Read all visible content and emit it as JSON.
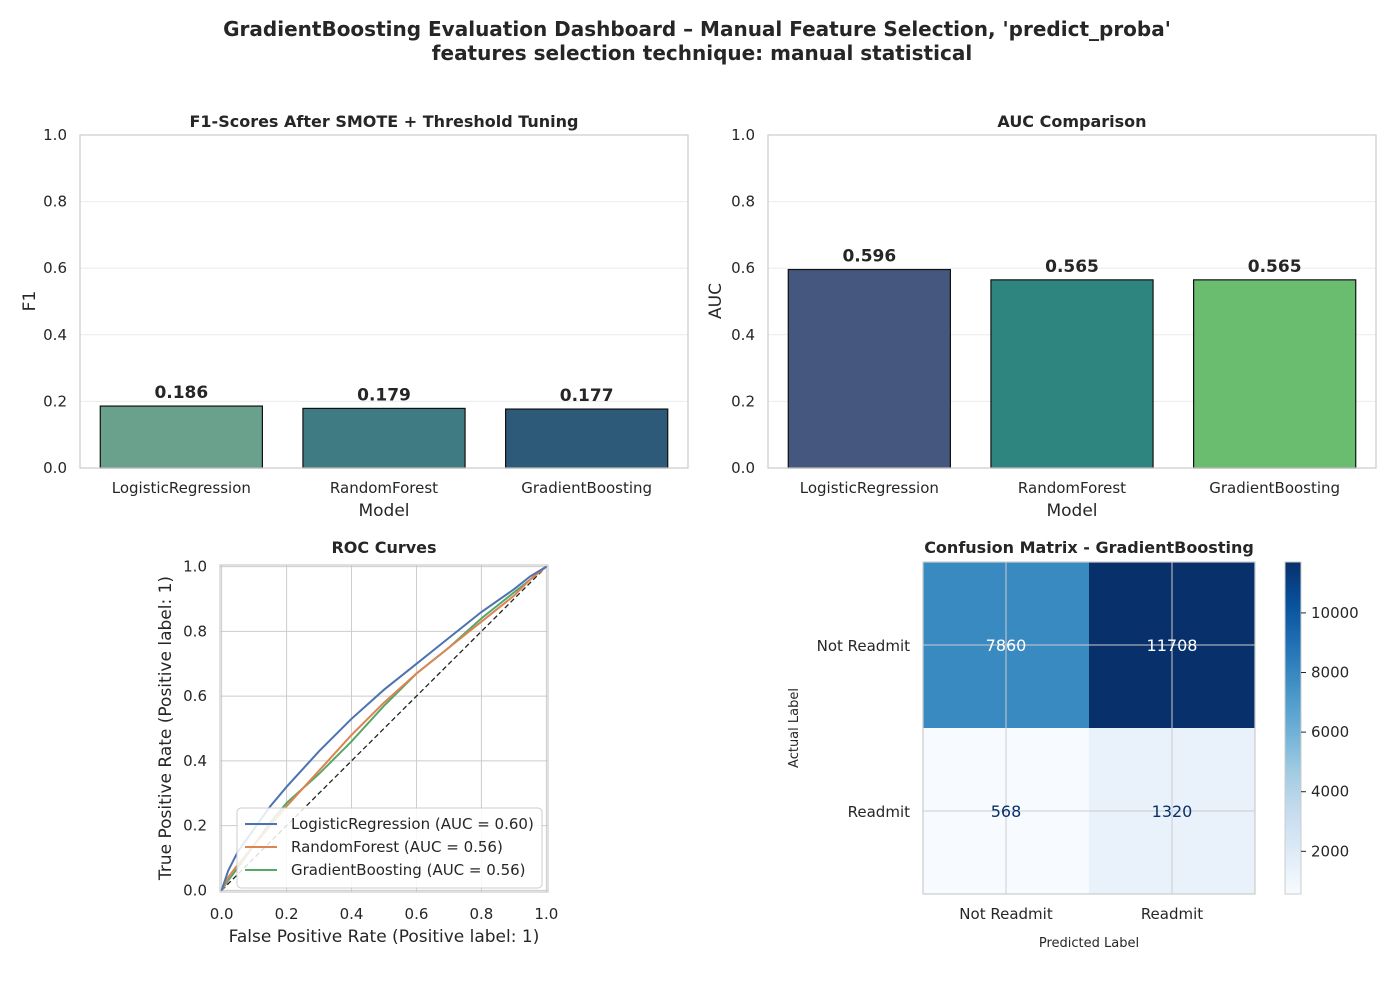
{
  "title_line1": "GradientBoosting Evaluation Dashboard – Manual Feature Selection, 'predict_proba'",
  "title_line2": "features selection technique: manual statistical",
  "chart_data": [
    {
      "type": "bar",
      "title": "F1-Scores After SMOTE + Threshold Tuning",
      "xlabel": "Model",
      "ylabel": "F1",
      "categories": [
        "LogisticRegression",
        "RandomForest",
        "GradientBoosting"
      ],
      "values": [
        0.186,
        0.179,
        0.177
      ],
      "value_labels": [
        "0.186",
        "0.179",
        "0.177"
      ],
      "colors": [
        "#6aa18c",
        "#3f7b82",
        "#2c5a78"
      ],
      "ylim": [
        0,
        1
      ],
      "yticks": [
        "0.0",
        "0.2",
        "0.4",
        "0.6",
        "0.8",
        "1.0"
      ],
      "grid": true
    },
    {
      "type": "bar",
      "title": "AUC Comparison",
      "xlabel": "Model",
      "ylabel": "AUC",
      "categories": [
        "LogisticRegression",
        "RandomForest",
        "GradientBoosting"
      ],
      "values": [
        0.596,
        0.565,
        0.565
      ],
      "value_labels": [
        "0.596",
        "0.565",
        "0.565"
      ],
      "colors": [
        "#45577f",
        "#2e857f",
        "#6abd6e"
      ],
      "ylim": [
        0,
        1
      ],
      "yticks": [
        "0.0",
        "0.2",
        "0.4",
        "0.6",
        "0.8",
        "1.0"
      ],
      "grid": true
    },
    {
      "type": "line",
      "title": "ROC Curves",
      "xlabel": "False Positive Rate (Positive label: 1)",
      "ylabel": "True Positive Rate (Positive label: 1)",
      "xlim": [
        0,
        1
      ],
      "ylim": [
        0,
        1
      ],
      "xticks": [
        "0.0",
        "0.2",
        "0.4",
        "0.6",
        "0.8",
        "1.0"
      ],
      "yticks": [
        "0.0",
        "0.2",
        "0.4",
        "0.6",
        "0.8",
        "1.0"
      ],
      "legend_position": "lower-right",
      "grid": true,
      "series": [
        {
          "name": "LogisticRegression (AUC = 0.60)",
          "color": "#4c72b0",
          "x": [
            0,
            0.02,
            0.05,
            0.1,
            0.15,
            0.2,
            0.3,
            0.4,
            0.5,
            0.6,
            0.7,
            0.8,
            0.9,
            0.95,
            1.0
          ],
          "y": [
            0,
            0.06,
            0.12,
            0.19,
            0.26,
            0.32,
            0.43,
            0.53,
            0.62,
            0.7,
            0.78,
            0.86,
            0.93,
            0.97,
            1.0
          ]
        },
        {
          "name": "RandomForest (AUC = 0.56)",
          "color": "#dd8452",
          "x": [
            0,
            0.02,
            0.05,
            0.1,
            0.15,
            0.2,
            0.3,
            0.4,
            0.5,
            0.6,
            0.7,
            0.8,
            0.9,
            0.95,
            1.0
          ],
          "y": [
            0,
            0.04,
            0.08,
            0.14,
            0.2,
            0.26,
            0.37,
            0.48,
            0.58,
            0.67,
            0.75,
            0.83,
            0.91,
            0.96,
            1.0
          ]
        },
        {
          "name": "GradientBoosting (AUC = 0.56)",
          "color": "#55a868",
          "x": [
            0,
            0.02,
            0.05,
            0.1,
            0.15,
            0.2,
            0.3,
            0.4,
            0.5,
            0.6,
            0.7,
            0.8,
            0.9,
            0.95,
            1.0
          ],
          "y": [
            0,
            0.03,
            0.07,
            0.14,
            0.21,
            0.27,
            0.36,
            0.46,
            0.57,
            0.67,
            0.75,
            0.84,
            0.92,
            0.96,
            1.0
          ]
        },
        {
          "name": "",
          "color": "#222222",
          "dashed": true,
          "x": [
            0,
            1
          ],
          "y": [
            0,
            1
          ]
        }
      ]
    },
    {
      "type": "heatmap",
      "title": "Confusion Matrix - GradientBoosting",
      "xlabel": "Predicted Label",
      "ylabel": "Actual Label",
      "xcategories": [
        "Not Readmit",
        "Readmit"
      ],
      "ycategories": [
        "Not Readmit",
        "Readmit"
      ],
      "values": [
        [
          7860,
          11708
        ],
        [
          568,
          1320
        ]
      ],
      "cell_labels": [
        [
          "7860",
          "11708"
        ],
        [
          "568",
          "1320"
        ]
      ],
      "colorbar_ticks": [
        "2000",
        "4000",
        "6000",
        "8000",
        "10000"
      ],
      "colormap": "Blues",
      "colorbar_range": [
        568,
        11708
      ]
    }
  ]
}
